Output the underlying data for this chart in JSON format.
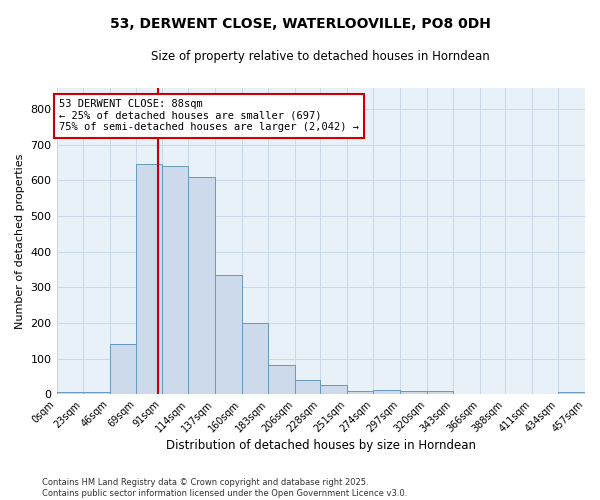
{
  "title_line1": "53, DERWENT CLOSE, WATERLOOVILLE, PO8 0DH",
  "title_line2": "Size of property relative to detached houses in Horndean",
  "xlabel": "Distribution of detached houses by size in Horndean",
  "ylabel": "Number of detached properties",
  "bin_edges": [
    0,
    23,
    46,
    69,
    91,
    114,
    137,
    160,
    183,
    206,
    228,
    251,
    274,
    297,
    320,
    343,
    366,
    388,
    411,
    434,
    457
  ],
  "bar_heights": [
    5,
    5,
    140,
    645,
    640,
    610,
    335,
    200,
    82,
    40,
    25,
    8,
    11,
    8,
    8,
    0,
    0,
    0,
    0,
    5
  ],
  "bar_color": "#ccdaeb",
  "bar_edge_color": "#6699bb",
  "vline_x": 88,
  "vline_color": "#cc0000",
  "annotation_text": "53 DERWENT CLOSE: 88sqm\n← 25% of detached houses are smaller (697)\n75% of semi-detached houses are larger (2,042) →",
  "annotation_box_facecolor": "#ffffff",
  "annotation_box_edgecolor": "#cc0000",
  "ylim": [
    0,
    860
  ],
  "yticks": [
    0,
    100,
    200,
    300,
    400,
    500,
    600,
    700,
    800
  ],
  "grid_color": "#c8d8e8",
  "footer_line1": "Contains HM Land Registry data © Crown copyright and database right 2025.",
  "footer_line2": "Contains public sector information licensed under the Open Government Licence v3.0.",
  "tick_labels": [
    "0sqm",
    "23sqm",
    "46sqm",
    "69sqm",
    "91sqm",
    "114sqm",
    "137sqm",
    "160sqm",
    "183sqm",
    "206sqm",
    "228sqm",
    "251sqm",
    "274sqm",
    "297sqm",
    "320sqm",
    "343sqm",
    "366sqm",
    "388sqm",
    "411sqm",
    "434sqm",
    "457sqm"
  ],
  "bg_color": "#e8f0f8",
  "fig_bg_color": "#ffffff"
}
